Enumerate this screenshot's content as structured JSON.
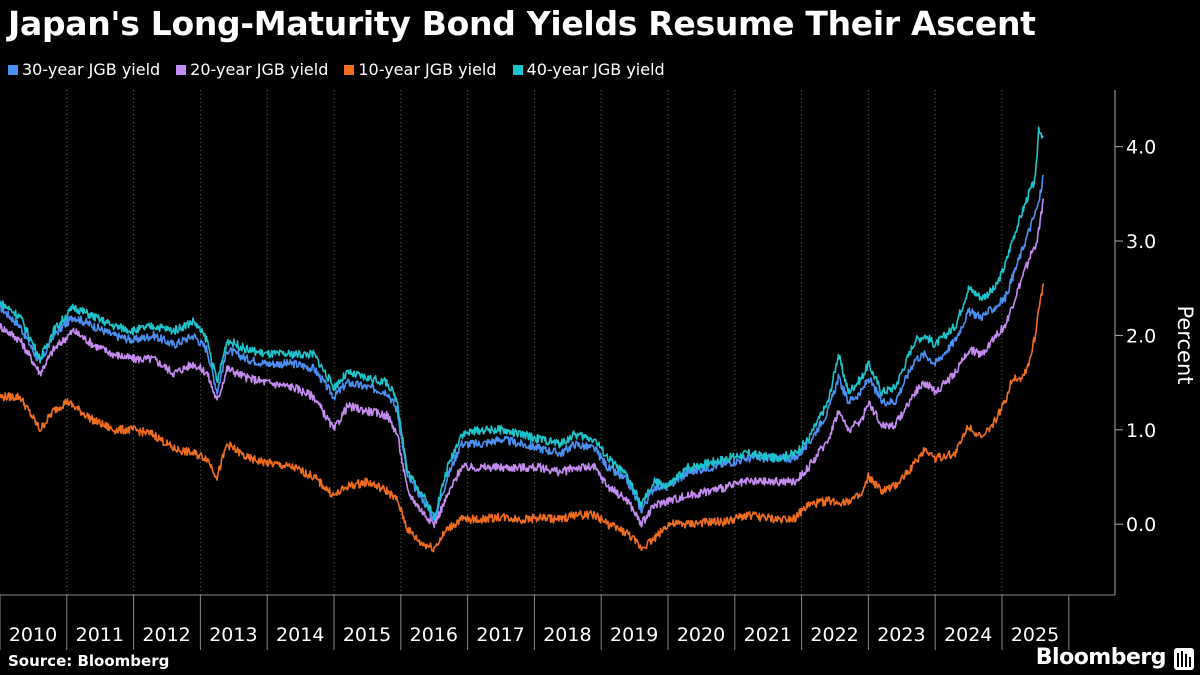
{
  "header": {
    "title": "Japan's Long-Maturity Bond Yields Resume Their Ascent"
  },
  "footer": {
    "source": "Source: Bloomberg",
    "brand": "Bloomberg"
  },
  "chart_data": {
    "type": "line",
    "title": "Japan's Long-Maturity Bond Yields Resume Their Ascent",
    "xlabel": "",
    "ylabel": "Percent",
    "xlim": [
      2010.0,
      2025.62
    ],
    "ylim": [
      -0.75,
      4.6
    ],
    "yticks": [
      0.0,
      1.0,
      2.0,
      3.0,
      4.0
    ],
    "ytick_labels": [
      "0.0",
      "1.0",
      "2.0",
      "3.0",
      "4.0"
    ],
    "xticks": [
      "2010",
      "2011",
      "2012",
      "2013",
      "2014",
      "2015",
      "2016",
      "2017",
      "2018",
      "2019",
      "2020",
      "2021",
      "2022",
      "2023",
      "2024",
      "2025"
    ],
    "grid": "vertical dotted",
    "legend_position": "top-left",
    "series": [
      {
        "name": "30-year JGB yield",
        "color": "#4a90f2",
        "points": [
          [
            2010.0,
            2.3
          ],
          [
            2010.3,
            2.1
          ],
          [
            2010.6,
            1.7
          ],
          [
            2010.8,
            2.0
          ],
          [
            2011.1,
            2.2
          ],
          [
            2011.4,
            2.1
          ],
          [
            2011.7,
            2.0
          ],
          [
            2012.0,
            1.95
          ],
          [
            2012.3,
            2.0
          ],
          [
            2012.6,
            1.9
          ],
          [
            2012.9,
            2.0
          ],
          [
            2013.1,
            1.85
          ],
          [
            2013.25,
            1.4
          ],
          [
            2013.4,
            1.85
          ],
          [
            2013.7,
            1.75
          ],
          [
            2014.0,
            1.7
          ],
          [
            2014.4,
            1.7
          ],
          [
            2014.7,
            1.65
          ],
          [
            2015.0,
            1.35
          ],
          [
            2015.2,
            1.5
          ],
          [
            2015.5,
            1.45
          ],
          [
            2015.8,
            1.4
          ],
          [
            2015.95,
            1.2
          ],
          [
            2016.1,
            0.5
          ],
          [
            2016.3,
            0.3
          ],
          [
            2016.5,
            0.05
          ],
          [
            2016.7,
            0.5
          ],
          [
            2016.9,
            0.85
          ],
          [
            2017.2,
            0.85
          ],
          [
            2017.5,
            0.9
          ],
          [
            2017.8,
            0.85
          ],
          [
            2018.1,
            0.8
          ],
          [
            2018.4,
            0.75
          ],
          [
            2018.6,
            0.85
          ],
          [
            2018.9,
            0.8
          ],
          [
            2019.1,
            0.6
          ],
          [
            2019.4,
            0.45
          ],
          [
            2019.6,
            0.15
          ],
          [
            2019.8,
            0.4
          ],
          [
            2020.0,
            0.4
          ],
          [
            2020.3,
            0.55
          ],
          [
            2020.6,
            0.6
          ],
          [
            2020.9,
            0.65
          ],
          [
            2021.2,
            0.7
          ],
          [
            2021.6,
            0.7
          ],
          [
            2021.9,
            0.7
          ],
          [
            2022.1,
            0.85
          ],
          [
            2022.4,
            1.2
          ],
          [
            2022.55,
            1.55
          ],
          [
            2022.7,
            1.3
          ],
          [
            2022.9,
            1.4
          ],
          [
            2023.0,
            1.55
          ],
          [
            2023.2,
            1.3
          ],
          [
            2023.4,
            1.3
          ],
          [
            2023.7,
            1.75
          ],
          [
            2023.85,
            1.8
          ],
          [
            2024.0,
            1.7
          ],
          [
            2024.3,
            1.95
          ],
          [
            2024.5,
            2.25
          ],
          [
            2024.7,
            2.2
          ],
          [
            2024.9,
            2.3
          ],
          [
            2025.05,
            2.4
          ],
          [
            2025.15,
            2.6
          ],
          [
            2025.3,
            2.9
          ],
          [
            2025.4,
            3.1
          ],
          [
            2025.5,
            3.3
          ],
          [
            2025.55,
            3.4
          ],
          [
            2025.62,
            3.7
          ]
        ]
      },
      {
        "name": "20-year JGB yield",
        "color": "#c48bf0",
        "points": [
          [
            2010.0,
            2.1
          ],
          [
            2010.3,
            1.95
          ],
          [
            2010.6,
            1.6
          ],
          [
            2010.8,
            1.85
          ],
          [
            2011.1,
            2.05
          ],
          [
            2011.4,
            1.9
          ],
          [
            2011.7,
            1.8
          ],
          [
            2012.0,
            1.75
          ],
          [
            2012.3,
            1.75
          ],
          [
            2012.6,
            1.6
          ],
          [
            2012.9,
            1.7
          ],
          [
            2013.1,
            1.6
          ],
          [
            2013.25,
            1.3
          ],
          [
            2013.4,
            1.65
          ],
          [
            2013.7,
            1.55
          ],
          [
            2014.0,
            1.5
          ],
          [
            2014.4,
            1.45
          ],
          [
            2014.7,
            1.35
          ],
          [
            2015.0,
            1.0
          ],
          [
            2015.2,
            1.25
          ],
          [
            2015.5,
            1.2
          ],
          [
            2015.8,
            1.15
          ],
          [
            2015.95,
            0.95
          ],
          [
            2016.1,
            0.35
          ],
          [
            2016.3,
            0.15
          ],
          [
            2016.5,
            0.0
          ],
          [
            2016.7,
            0.3
          ],
          [
            2016.9,
            0.6
          ],
          [
            2017.2,
            0.6
          ],
          [
            2017.5,
            0.6
          ],
          [
            2017.8,
            0.6
          ],
          [
            2018.1,
            0.6
          ],
          [
            2018.4,
            0.55
          ],
          [
            2018.6,
            0.6
          ],
          [
            2018.9,
            0.6
          ],
          [
            2019.1,
            0.4
          ],
          [
            2019.4,
            0.25
          ],
          [
            2019.6,
            0.0
          ],
          [
            2019.8,
            0.2
          ],
          [
            2020.0,
            0.25
          ],
          [
            2020.3,
            0.3
          ],
          [
            2020.6,
            0.35
          ],
          [
            2020.9,
            0.4
          ],
          [
            2021.2,
            0.45
          ],
          [
            2021.6,
            0.45
          ],
          [
            2021.9,
            0.45
          ],
          [
            2022.1,
            0.6
          ],
          [
            2022.4,
            0.9
          ],
          [
            2022.55,
            1.2
          ],
          [
            2022.7,
            1.0
          ],
          [
            2022.9,
            1.1
          ],
          [
            2023.0,
            1.3
          ],
          [
            2023.2,
            1.05
          ],
          [
            2023.4,
            1.05
          ],
          [
            2023.7,
            1.4
          ],
          [
            2023.85,
            1.5
          ],
          [
            2024.0,
            1.4
          ],
          [
            2024.3,
            1.6
          ],
          [
            2024.5,
            1.85
          ],
          [
            2024.7,
            1.8
          ],
          [
            2024.9,
            2.0
          ],
          [
            2025.05,
            2.1
          ],
          [
            2025.15,
            2.3
          ],
          [
            2025.3,
            2.6
          ],
          [
            2025.4,
            2.8
          ],
          [
            2025.5,
            2.95
          ],
          [
            2025.55,
            3.1
          ],
          [
            2025.62,
            3.45
          ]
        ]
      },
      {
        "name": "10-year JGB yield",
        "color": "#ef6d1f",
        "points": [
          [
            2010.0,
            1.35
          ],
          [
            2010.3,
            1.35
          ],
          [
            2010.6,
            1.0
          ],
          [
            2010.8,
            1.2
          ],
          [
            2011.0,
            1.3
          ],
          [
            2011.2,
            1.2
          ],
          [
            2011.4,
            1.1
          ],
          [
            2011.7,
            1.0
          ],
          [
            2012.0,
            1.0
          ],
          [
            2012.3,
            0.95
          ],
          [
            2012.6,
            0.8
          ],
          [
            2012.9,
            0.75
          ],
          [
            2013.1,
            0.7
          ],
          [
            2013.25,
            0.5
          ],
          [
            2013.4,
            0.85
          ],
          [
            2013.7,
            0.7
          ],
          [
            2014.0,
            0.65
          ],
          [
            2014.4,
            0.6
          ],
          [
            2014.7,
            0.5
          ],
          [
            2015.0,
            0.3
          ],
          [
            2015.2,
            0.4
          ],
          [
            2015.5,
            0.45
          ],
          [
            2015.8,
            0.35
          ],
          [
            2015.95,
            0.25
          ],
          [
            2016.1,
            -0.05
          ],
          [
            2016.3,
            -0.2
          ],
          [
            2016.5,
            -0.25
          ],
          [
            2016.7,
            -0.05
          ],
          [
            2016.9,
            0.05
          ],
          [
            2017.2,
            0.05
          ],
          [
            2017.5,
            0.08
          ],
          [
            2017.8,
            0.05
          ],
          [
            2018.1,
            0.07
          ],
          [
            2018.4,
            0.05
          ],
          [
            2018.6,
            0.1
          ],
          [
            2018.9,
            0.1
          ],
          [
            2019.1,
            0.0
          ],
          [
            2019.4,
            -0.1
          ],
          [
            2019.6,
            -0.25
          ],
          [
            2019.8,
            -0.15
          ],
          [
            2020.0,
            0.0
          ],
          [
            2020.3,
            0.0
          ],
          [
            2020.6,
            0.02
          ],
          [
            2020.9,
            0.03
          ],
          [
            2021.2,
            0.1
          ],
          [
            2021.6,
            0.05
          ],
          [
            2021.9,
            0.07
          ],
          [
            2022.1,
            0.2
          ],
          [
            2022.4,
            0.25
          ],
          [
            2022.55,
            0.23
          ],
          [
            2022.7,
            0.25
          ],
          [
            2022.9,
            0.3
          ],
          [
            2023.0,
            0.5
          ],
          [
            2023.2,
            0.35
          ],
          [
            2023.4,
            0.4
          ],
          [
            2023.7,
            0.65
          ],
          [
            2023.85,
            0.8
          ],
          [
            2024.0,
            0.7
          ],
          [
            2024.3,
            0.75
          ],
          [
            2024.5,
            1.05
          ],
          [
            2024.7,
            0.9
          ],
          [
            2024.9,
            1.1
          ],
          [
            2025.05,
            1.3
          ],
          [
            2025.15,
            1.55
          ],
          [
            2025.3,
            1.55
          ],
          [
            2025.4,
            1.7
          ],
          [
            2025.5,
            2.0
          ],
          [
            2025.55,
            2.3
          ],
          [
            2025.62,
            2.55
          ]
        ]
      },
      {
        "name": "40-year JGB yield",
        "color": "#1cc4cc",
        "points": [
          [
            2010.0,
            2.35
          ],
          [
            2010.3,
            2.2
          ],
          [
            2010.6,
            1.75
          ],
          [
            2010.8,
            2.05
          ],
          [
            2011.1,
            2.3
          ],
          [
            2011.4,
            2.2
          ],
          [
            2011.7,
            2.1
          ],
          [
            2012.0,
            2.05
          ],
          [
            2012.3,
            2.1
          ],
          [
            2012.6,
            2.05
          ],
          [
            2012.9,
            2.15
          ],
          [
            2013.1,
            1.95
          ],
          [
            2013.25,
            1.5
          ],
          [
            2013.4,
            1.95
          ],
          [
            2013.7,
            1.85
          ],
          [
            2014.0,
            1.8
          ],
          [
            2014.4,
            1.8
          ],
          [
            2014.7,
            1.8
          ],
          [
            2015.0,
            1.45
          ],
          [
            2015.2,
            1.6
          ],
          [
            2015.5,
            1.55
          ],
          [
            2015.8,
            1.5
          ],
          [
            2015.95,
            1.3
          ],
          [
            2016.1,
            0.55
          ],
          [
            2016.3,
            0.35
          ],
          [
            2016.5,
            0.08
          ],
          [
            2016.7,
            0.6
          ],
          [
            2016.9,
            0.95
          ],
          [
            2017.2,
            1.0
          ],
          [
            2017.5,
            1.0
          ],
          [
            2017.8,
            0.95
          ],
          [
            2018.1,
            0.9
          ],
          [
            2018.4,
            0.85
          ],
          [
            2018.6,
            0.95
          ],
          [
            2018.9,
            0.9
          ],
          [
            2019.1,
            0.7
          ],
          [
            2019.4,
            0.5
          ],
          [
            2019.6,
            0.2
          ],
          [
            2019.8,
            0.45
          ],
          [
            2020.0,
            0.4
          ],
          [
            2020.3,
            0.6
          ],
          [
            2020.6,
            0.65
          ],
          [
            2020.9,
            0.7
          ],
          [
            2021.2,
            0.75
          ],
          [
            2021.6,
            0.7
          ],
          [
            2021.9,
            0.75
          ],
          [
            2022.1,
            0.9
          ],
          [
            2022.4,
            1.3
          ],
          [
            2022.55,
            1.8
          ],
          [
            2022.7,
            1.4
          ],
          [
            2022.9,
            1.55
          ],
          [
            2023.0,
            1.7
          ],
          [
            2023.2,
            1.4
          ],
          [
            2023.4,
            1.45
          ],
          [
            2023.7,
            1.95
          ],
          [
            2023.85,
            2.0
          ],
          [
            2024.0,
            1.9
          ],
          [
            2024.3,
            2.1
          ],
          [
            2024.5,
            2.5
          ],
          [
            2024.7,
            2.4
          ],
          [
            2024.9,
            2.5
          ],
          [
            2025.05,
            2.75
          ],
          [
            2025.15,
            3.0
          ],
          [
            2025.3,
            3.3
          ],
          [
            2025.4,
            3.5
          ],
          [
            2025.5,
            3.65
          ],
          [
            2025.55,
            4.2
          ],
          [
            2025.62,
            4.1
          ]
        ]
      }
    ]
  }
}
